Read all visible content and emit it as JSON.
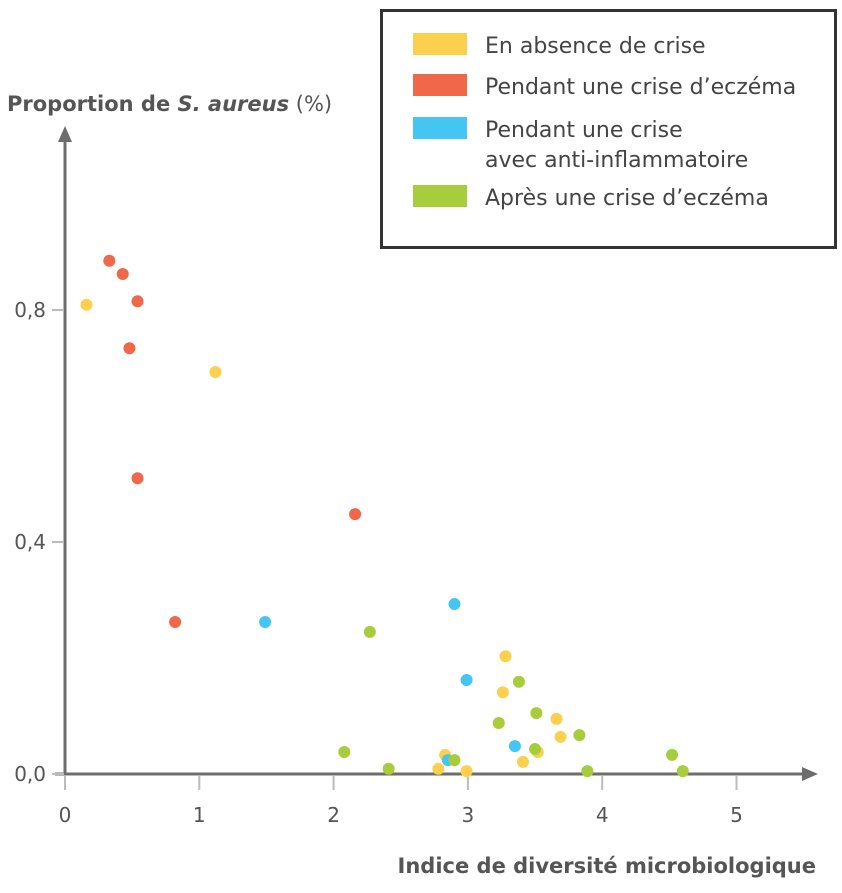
{
  "chart_data": {
    "type": "scatter",
    "xlabel": "Indice de diversité microbiologique",
    "ylabel": {
      "prefix": "Proportion de ",
      "italic": "S. aureus",
      "suffix": " (%)"
    },
    "xlim": [
      0,
      5.5
    ],
    "ylim": [
      0,
      1.1
    ],
    "x_ticks": [
      "0",
      "1",
      "2",
      "3",
      "4",
      "5"
    ],
    "x_tick_values": [
      0,
      1,
      2,
      3,
      4,
      5
    ],
    "y_ticks": [
      "0,0",
      "0,4",
      "0,8"
    ],
    "y_tick_values": [
      0,
      0.4,
      0.8
    ],
    "grid": false,
    "legend_position": "top-right",
    "series": [
      {
        "name": "En absence de crise",
        "color": "#FCD04F",
        "points": [
          [
            0.16,
            0.809
          ],
          [
            1.12,
            0.693
          ],
          [
            3.28,
            0.203
          ],
          [
            3.26,
            0.141
          ],
          [
            3.66,
            0.095
          ],
          [
            3.69,
            0.064
          ],
          [
            3.52,
            0.038
          ],
          [
            3.41,
            0.021
          ],
          [
            2.83,
            0.033
          ],
          [
            2.78,
            0.009
          ],
          [
            2.99,
            0.005
          ]
        ]
      },
      {
        "name": "Pendant une crise d’eczéma",
        "color": "#F0674A",
        "points": [
          [
            0.33,
            0.885
          ],
          [
            0.43,
            0.862
          ],
          [
            0.54,
            0.815
          ],
          [
            0.48,
            0.734
          ],
          [
            0.54,
            0.51
          ],
          [
            2.16,
            0.448
          ],
          [
            0.82,
            0.262
          ]
        ]
      },
      {
        "name": "Pendant une crise\navec anti-inflammatoire",
        "name_lines": [
          "Pendant une crise",
          "avec anti-inflammatoire"
        ],
        "color": "#45C6F2",
        "points": [
          [
            1.49,
            0.262
          ],
          [
            2.9,
            0.293
          ],
          [
            2.99,
            0.162
          ],
          [
            3.35,
            0.048
          ],
          [
            2.85,
            0.024
          ]
        ]
      },
      {
        "name": "Après une crise d’eczéma",
        "color": "#A8CD3C",
        "points": [
          [
            2.27,
            0.245
          ],
          [
            3.38,
            0.159
          ],
          [
            3.51,
            0.105
          ],
          [
            3.23,
            0.088
          ],
          [
            3.83,
            0.067
          ],
          [
            3.5,
            0.043
          ],
          [
            2.08,
            0.038
          ],
          [
            2.41,
            0.009
          ],
          [
            2.9,
            0.024
          ],
          [
            3.89,
            0.005
          ],
          [
            4.52,
            0.033
          ],
          [
            4.6,
            0.005
          ]
        ]
      }
    ]
  }
}
